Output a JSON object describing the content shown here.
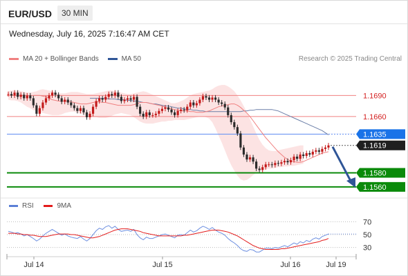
{
  "header": {
    "symbol": "EUR/USD",
    "timeframe": "30 MIN"
  },
  "datetime": "Wednesday, July 16, 2025 7:16:47 AM CET",
  "legend": {
    "ma20": {
      "label": "MA 20 + Bollinger Bands",
      "color": "#f08080"
    },
    "ma50": {
      "label": "MA 50",
      "color": "#2f5597"
    }
  },
  "copyright": "Research © 2025 Trading Central",
  "rsi_legend": {
    "rsi": {
      "label": "RSI",
      "color": "#5b7fd6"
    },
    "ma9": {
      "label": "9MA",
      "color": "#e31b1b"
    }
  },
  "chart_data": {
    "type": "candlestick",
    "symbol": "EUR/USD",
    "timeframe": "30 MIN",
    "ylim": [
      1.1553,
      1.1708
    ],
    "x_tick_labels": [
      "Jul 14",
      "Jul 15",
      "Jul 16",
      "Jul 19"
    ],
    "levels": [
      {
        "value": 1.169,
        "label": "1.1690",
        "kind": "resistance"
      },
      {
        "value": 1.166,
        "label": "1.1660",
        "kind": "resistance"
      },
      {
        "value": 1.1635,
        "label": "1.1635",
        "kind": "pivot"
      },
      {
        "value": 1.1619,
        "label": "1.1619",
        "kind": "last-price"
      },
      {
        "value": 1.158,
        "label": "1.1580",
        "kind": "target"
      },
      {
        "value": 1.156,
        "label": "1.1560",
        "kind": "target"
      }
    ],
    "close": [
      1.1692,
      1.169,
      1.1694,
      1.1688,
      1.1691,
      1.1686,
      1.169,
      1.1686,
      1.1676,
      1.1664,
      1.1672,
      1.168,
      1.1686,
      1.169,
      1.1694,
      1.1691,
      1.1686,
      1.1681,
      1.1684,
      1.168,
      1.1676,
      1.1672,
      1.1668,
      1.1672,
      1.1666,
      1.1659,
      1.1664,
      1.1674,
      1.1682,
      1.1686,
      1.1684,
      1.1688,
      1.1692,
      1.169,
      1.1694,
      1.1688,
      1.1682,
      1.1684,
      1.1686,
      1.1684,
      1.1688,
      1.1674,
      1.1664,
      1.166,
      1.1666,
      1.1662,
      1.1662,
      1.1664,
      1.1668,
      1.1671,
      1.1673,
      1.167,
      1.1666,
      1.1662,
      1.1668,
      1.167,
      1.1669,
      1.1674,
      1.168,
      1.1676,
      1.1679,
      1.1684,
      1.1689,
      1.1687,
      1.1684,
      1.1687,
      1.1684,
      1.168,
      1.1678,
      1.1673,
      1.1662,
      1.1652,
      1.1645,
      1.1636,
      1.1616,
      1.1606,
      1.1599,
      1.1602,
      1.1596,
      1.1586,
      1.1584,
      1.1588,
      1.1592,
      1.1592,
      1.1591,
      1.1594,
      1.1593,
      1.1595,
      1.1597,
      1.1595,
      1.1598,
      1.1603,
      1.16,
      1.1606,
      1.1604,
      1.1608,
      1.1606,
      1.161,
      1.1612,
      1.161,
      1.1614,
      1.1616,
      1.1619
    ],
    "ma20": [
      1.169,
      1.169,
      1.169,
      1.1689,
      1.1688,
      1.1686,
      1.1684,
      1.1683,
      1.1682,
      1.1682,
      1.1682,
      1.1682,
      1.1681,
      1.168,
      1.1679,
      1.1678,
      1.1678,
      1.1678,
      1.1679,
      1.168,
      1.1681,
      1.1681,
      1.168,
      1.168,
      1.1679,
      1.1678,
      1.1677,
      1.1676,
      1.1676,
      1.1676,
      1.1676,
      1.1676,
      1.1677,
      1.1678,
      1.168,
      1.168,
      1.168,
      1.1679,
      1.1678,
      1.1677,
      1.1676,
      1.1675,
      1.1673,
      1.1672,
      1.1671,
      1.167,
      1.1669,
      1.1668,
      1.1668,
      1.1668,
      1.1667,
      1.1667,
      1.1666,
      1.1666,
      1.1666,
      1.1667,
      1.1668,
      1.167,
      1.1672,
      1.1674,
      1.1675,
      1.1676,
      1.1677,
      1.1678,
      1.1678,
      1.1676,
      1.1673,
      1.1669,
      1.1665,
      1.166,
      1.1654,
      1.1648,
      1.1642,
      1.1636,
      1.163,
      1.1625,
      1.162,
      1.1615,
      1.161,
      1.1606,
      1.1602,
      1.1599,
      1.1597,
      1.1596,
      1.1595,
      1.1595,
      1.1596,
      1.1598,
      1.16,
      1.1602,
      1.1604,
      1.1606,
      1.1608,
      1.1609,
      1.161
    ],
    "ma50": [
      1.1686,
      1.1686,
      1.1686,
      1.1686,
      1.1686,
      1.1686,
      1.1685,
      1.1685,
      1.1685,
      1.1684,
      1.1684,
      1.1684,
      1.1683,
      1.1683,
      1.1682,
      1.1682,
      1.1681,
      1.168,
      1.168,
      1.1679,
      1.1678,
      1.1678,
      1.1677,
      1.1676,
      1.1675,
      1.1675,
      1.1674,
      1.1673,
      1.1672,
      1.1672,
      1.1671,
      1.167,
      1.167,
      1.1669,
      1.1669,
      1.1668,
      1.1668,
      1.1667,
      1.1667,
      1.1667,
      1.1667,
      1.1667,
      1.1667,
      1.1667,
      1.1667,
      1.1667,
      1.1667,
      1.1667,
      1.1667,
      1.1668,
      1.1668,
      1.1669,
      1.1669,
      1.167,
      1.167,
      1.167,
      1.167,
      1.167,
      1.167,
      1.1669,
      1.1668,
      1.1666,
      1.1664,
      1.1662,
      1.166,
      1.1658,
      1.1656,
      1.1654,
      1.1652,
      1.165,
      1.1648,
      1.1646,
      1.1644,
      1.1642,
      1.164,
      1.1637,
      1.1634
    ],
    "bb_upper": [
      1.1696,
      1.1697,
      1.1697,
      1.1697,
      1.1696,
      1.1695,
      1.1694,
      1.1694,
      1.1695,
      1.1696,
      1.1698,
      1.1699,
      1.1698,
      1.1697,
      1.1696,
      1.1694,
      1.1693,
      1.1693,
      1.1693,
      1.1694,
      1.1695,
      1.1695,
      1.1695,
      1.1694,
      1.1693,
      1.1692,
      1.1692,
      1.1692,
      1.1693,
      1.1694,
      1.1695,
      1.1696,
      1.1697,
      1.1697,
      1.1696,
      1.1695,
      1.1694,
      1.1693,
      1.1692,
      1.1692,
      1.1693,
      1.1694,
      1.1695,
      1.1696,
      1.1695,
      1.1693,
      1.1691,
      1.1689,
      1.1687,
      1.1685,
      1.1683,
      1.1681,
      1.1679,
      1.1679,
      1.168,
      1.1682,
      1.1684,
      1.1687,
      1.169,
      1.1692,
      1.1693,
      1.1694,
      1.1695,
      1.1696,
      1.1697,
      1.1699,
      1.1702,
      1.1704,
      1.1705,
      1.1705,
      1.1703,
      1.17,
      1.1696,
      1.169,
      1.1683,
      1.1675,
      1.1666,
      1.1656,
      1.1646,
      1.1636,
      1.1627,
      1.162,
      1.1615,
      1.1612,
      1.1611,
      1.1611,
      1.1612,
      1.1613,
      1.1614,
      1.1615,
      1.1616,
      1.1617,
      1.1618,
      1.1619,
      1.1619
    ],
    "bb_lower": [
      1.1684,
      1.1683,
      1.1683,
      1.1682,
      1.168,
      1.1677,
      1.1674,
      1.1672,
      1.1669,
      1.1668,
      1.1666,
      1.1665,
      1.1664,
      1.1663,
      1.1662,
      1.1662,
      1.1662,
      1.1663,
      1.1665,
      1.1666,
      1.1667,
      1.1667,
      1.1665,
      1.1664,
      1.1663,
      1.1661,
      1.166,
      1.1659,
      1.1659,
      1.1658,
      1.1658,
      1.1658,
      1.1659,
      1.1661,
      1.1663,
      1.1664,
      1.1665,
      1.1664,
      1.1663,
      1.1662,
      1.1659,
      1.1656,
      1.1653,
      1.1651,
      1.165,
      1.165,
      1.165,
      1.1651,
      1.1652,
      1.1653,
      1.1653,
      1.1654,
      1.1654,
      1.1655,
      1.1655,
      1.1655,
      1.1655,
      1.1656,
      1.1657,
      1.1658,
      1.1659,
      1.166,
      1.166,
      1.1659,
      1.1657,
      1.1652,
      1.1643,
      1.1633,
      1.1623,
      1.1612,
      1.1601,
      1.1591,
      1.1583,
      1.1576,
      1.1571,
      1.1569,
      1.157,
      1.1573,
      1.1577,
      1.158,
      1.1582,
      1.1584,
      1.1585,
      1.1586,
      1.1586,
      1.1587,
      1.1588,
      1.1588,
      1.1589,
      1.1589,
      1.159,
      1.159,
      1.1591,
      1.1592,
      1.1593
    ],
    "rsi": {
      "ylim": [
        20,
        80
      ],
      "ticks": [
        "70",
        "50",
        "30"
      ],
      "rsi": [
        55,
        54,
        52,
        53,
        51,
        48,
        50,
        47,
        44,
        40,
        43,
        48,
        52,
        55,
        58,
        55,
        52,
        49,
        51,
        48,
        46,
        45,
        44,
        47,
        43,
        40,
        44,
        50,
        56,
        60,
        58,
        62,
        64,
        60,
        63,
        58,
        55,
        56,
        57,
        55,
        58,
        50,
        45,
        42,
        46,
        44,
        44,
        46,
        48,
        50,
        51,
        49,
        47,
        45,
        49,
        50,
        49,
        53,
        57,
        54,
        56,
        60,
        63,
        61,
        58,
        61,
        57,
        54,
        52,
        49,
        44,
        40,
        37,
        33,
        28,
        25,
        24,
        27,
        26,
        23,
        23,
        26,
        29,
        29,
        28,
        30,
        29,
        31,
        33,
        31,
        34,
        37,
        35,
        39,
        37,
        41,
        39,
        43,
        45,
        43,
        47,
        49,
        51
      ],
      "ma9": [
        52,
        52,
        52,
        51,
        51,
        50,
        50,
        49,
        49,
        48,
        47,
        47,
        47,
        48,
        49,
        50,
        51,
        51,
        51,
        51,
        50,
        50,
        49,
        48,
        47,
        46,
        45,
        45,
        46,
        47,
        49,
        51,
        53,
        55,
        57,
        58,
        59,
        59,
        59,
        58,
        57,
        56,
        55,
        53,
        52,
        51,
        50,
        49,
        48,
        48,
        48,
        48,
        48,
        48,
        48,
        48,
        49,
        49,
        50,
        51,
        52,
        53,
        54,
        55,
        56,
        57,
        57,
        57,
        56,
        55,
        54,
        52,
        50,
        48,
        45,
        42,
        39,
        36,
        33,
        31,
        29,
        28,
        27,
        27,
        27,
        27,
        27,
        28,
        28,
        29,
        30,
        31,
        32,
        33,
        34,
        35,
        36,
        37,
        38,
        39,
        41,
        42,
        44
      ]
    }
  }
}
